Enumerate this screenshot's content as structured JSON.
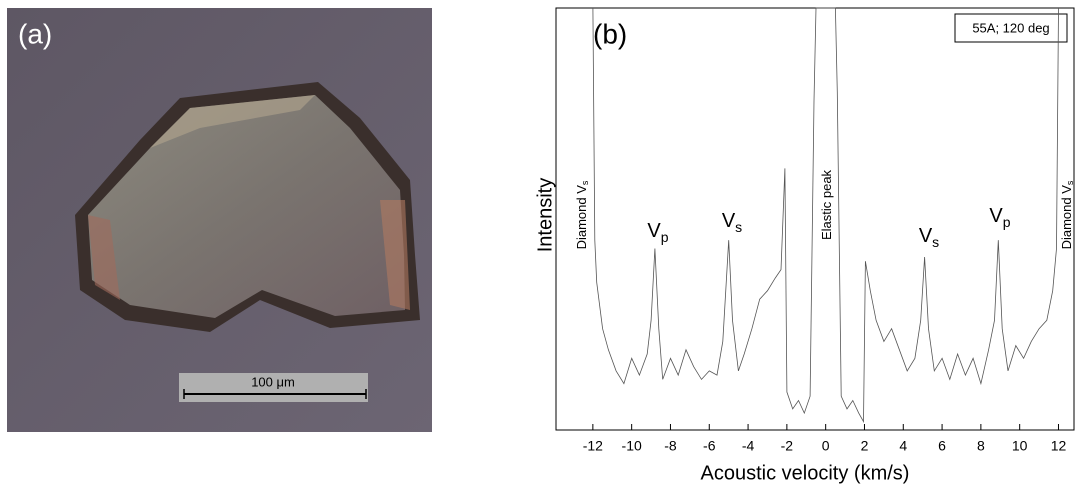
{
  "panel_a": {
    "label": "(a)",
    "scale_bar": "100 μm"
  },
  "chart_data": {
    "type": "line",
    "panel_label": "(b)",
    "legend_box": "55A; 120 deg",
    "x_label": "Acoustic velocity (km/s)",
    "y_label": "Intensity",
    "annotations": [
      {
        "text": "Diamond V",
        "sub": "s"
      },
      {
        "text": "V",
        "sub": "p"
      },
      {
        "text": "V",
        "sub": "s"
      },
      {
        "text": "Elastic peak"
      },
      {
        "text": "V",
        "sub": "s"
      },
      {
        "text": "V",
        "sub": "p"
      },
      {
        "text": "Diamond V",
        "sub": "s"
      }
    ],
    "x": [
      -12.0,
      -11.9,
      -11.8,
      -11.5,
      -11.2,
      -10.8,
      -10.4,
      -10.0,
      -9.6,
      -9.2,
      -9.0,
      -8.8,
      -8.6,
      -8.4,
      -8.0,
      -7.6,
      -7.2,
      -6.8,
      -6.4,
      -6.0,
      -5.6,
      -5.3,
      -5.0,
      -4.8,
      -4.5,
      -4.2,
      -3.8,
      -3.4,
      -3.0,
      -2.6,
      -2.3,
      -2.1,
      -2.0,
      -1.7,
      -1.4,
      -1.1,
      -0.8,
      -0.6,
      -0.5,
      0.0,
      0.5,
      0.6,
      0.8,
      1.1,
      1.4,
      1.7,
      1.95,
      2.05,
      2.3,
      2.6,
      3.0,
      3.4,
      3.8,
      4.2,
      4.6,
      4.9,
      5.1,
      5.3,
      5.6,
      6.0,
      6.4,
      6.8,
      7.2,
      7.6,
      8.0,
      8.4,
      8.7,
      8.9,
      9.1,
      9.4,
      9.8,
      10.2,
      10.6,
      11.0,
      11.4,
      11.7,
      11.9,
      12.0
    ],
    "series": [
      {
        "name": "Intensity",
        "color": "#555555",
        "values": [
          100,
          45,
          35,
          24,
          19,
          14,
          11,
          17,
          13,
          18,
          26,
          43,
          24,
          12,
          17,
          13,
          19,
          15,
          12,
          14,
          13,
          21,
          45,
          26,
          14,
          18,
          24,
          31,
          33,
          36,
          38,
          62,
          9,
          5,
          7,
          4,
          8,
          78,
          100,
          100,
          100,
          80,
          8,
          5,
          7,
          4,
          2,
          40,
          33,
          26,
          21,
          24,
          19,
          14,
          17,
          26,
          41,
          24,
          14,
          17,
          12,
          18,
          13,
          17,
          11,
          19,
          26,
          45,
          24,
          14,
          20,
          17,
          21,
          24,
          26,
          33,
          43,
          100
        ]
      }
    ],
    "xlim": [
      -13.9,
      12.8
    ],
    "ylim": [
      0,
      100
    ],
    "xticks": [
      -12,
      -10,
      -8,
      -6,
      -4,
      -2,
      0,
      2,
      4,
      6,
      8,
      10,
      12
    ]
  }
}
